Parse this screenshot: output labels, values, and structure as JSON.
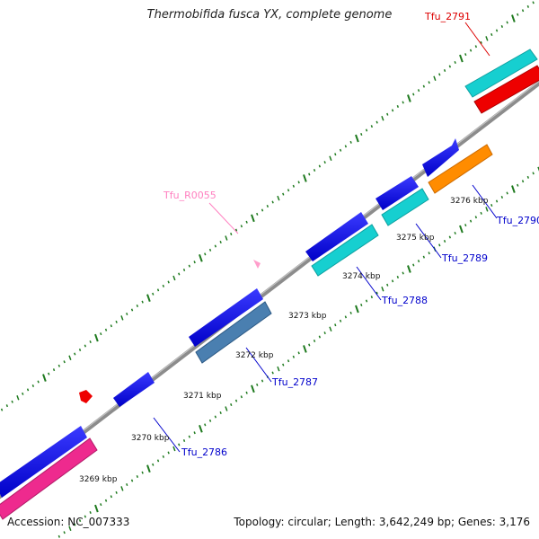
{
  "header": {
    "title": "Thermobifida fusca YX, complete genome"
  },
  "footer": {
    "accession": "Accession: NC_007333",
    "summary": "Topology: circular; Length: 3,642,249 bp; Genes: 3,176"
  },
  "colors": {
    "backbone": "#8c8c8c",
    "tick": "#1e7a1e",
    "gene_blue": "#0000ee",
    "gene_cyan": "#16cfd0",
    "gene_red": "#ee0000",
    "gene_pink": "#ee2a8e",
    "gene_steel": "#4a7fb0",
    "gene_orange": "#ff8c00",
    "rna_pink": "#ff9ecb",
    "label_blue": "#0000cc",
    "label_red": "#dd0000",
    "label_pink": "#ff80c0"
  },
  "map": {
    "kbp_labels": [
      "3269 kbp",
      "3270 kbp",
      "3271 kbp",
      "3272 kbp",
      "3273 kbp",
      "3274 kbp",
      "3275 kbp",
      "3276 kbp"
    ],
    "gene_labels": [
      {
        "text": "Tfu_2786",
        "color": "label_blue"
      },
      {
        "text": "Tfu_2787",
        "color": "label_blue"
      },
      {
        "text": "Tfu_2788",
        "color": "label_blue"
      },
      {
        "text": "Tfu_2789",
        "color": "label_blue"
      },
      {
        "text": "Tfu_2790",
        "color": "label_blue"
      },
      {
        "text": "Tfu_2791",
        "color": "label_red"
      },
      {
        "text": "Tfu_R0055",
        "color": "label_pink"
      }
    ]
  }
}
